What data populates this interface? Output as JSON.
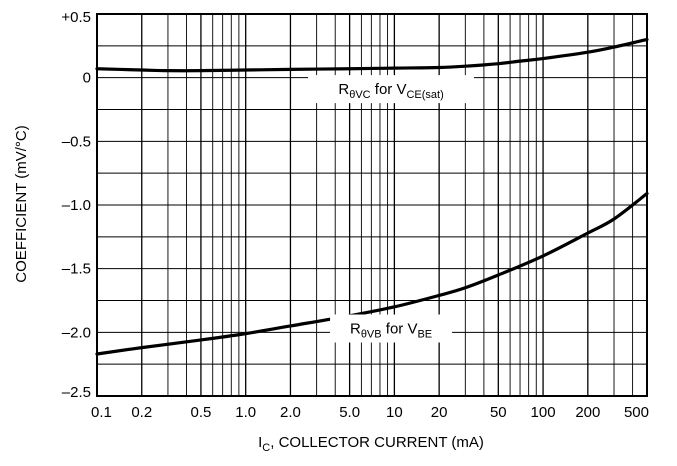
{
  "chart_data": {
    "type": "line",
    "title": "",
    "xlabel": {
      "main": "I",
      "sub": "C",
      "rest": ", COLLECTOR CURRENT (mA)"
    },
    "ylabel": "COEFFICIENT (mV/°C)",
    "xscale": "log",
    "xlim": [
      0.1,
      500
    ],
    "ylim": [
      -2.5,
      0.5
    ],
    "x_ticks": [
      0.1,
      0.2,
      0.5,
      1.0,
      2.0,
      5.0,
      10,
      20,
      50,
      100,
      200,
      500
    ],
    "x_tick_labels": [
      "0.1",
      "0.2",
      "0.5",
      "1.0",
      "2.0",
      "5.0",
      "10",
      "20",
      "50",
      "100",
      "200",
      "500"
    ],
    "y_ticks": [
      0.5,
      0,
      -0.5,
      -1.0,
      -1.5,
      -2.0,
      -2.5
    ],
    "y_tick_labels": [
      "+0.5",
      "0",
      "–0.5",
      "–1.0",
      "–1.5",
      "–2.0",
      "–2.5"
    ],
    "grid": true,
    "series": [
      {
        "name": "RθVC for VCE(sat)",
        "label_parts": {
          "r": "R",
          "r_sub": "θVC",
          "mid": " for V",
          "v_sub": "CE(sat)"
        },
        "x": [
          0.1,
          0.2,
          0.3,
          0.5,
          1,
          2,
          5,
          10,
          20,
          30,
          50,
          70,
          100,
          200,
          300,
          500
        ],
        "y": [
          0.07,
          0.06,
          0.055,
          0.055,
          0.06,
          0.065,
          0.07,
          0.075,
          0.08,
          0.09,
          0.11,
          0.13,
          0.15,
          0.2,
          0.24,
          0.3
        ]
      },
      {
        "name": "RθVB for VBE",
        "label_parts": {
          "r": "R",
          "r_sub": "θVB",
          "mid": " for V",
          "v_sub": "BE"
        },
        "x": [
          0.1,
          0.2,
          0.5,
          1,
          2,
          5,
          10,
          20,
          30,
          50,
          100,
          200,
          300,
          500
        ],
        "y": [
          -2.17,
          -2.12,
          -2.06,
          -2.01,
          -1.95,
          -1.87,
          -1.8,
          -1.71,
          -1.65,
          -1.55,
          -1.4,
          -1.22,
          -1.11,
          -0.91
        ]
      }
    ]
  }
}
